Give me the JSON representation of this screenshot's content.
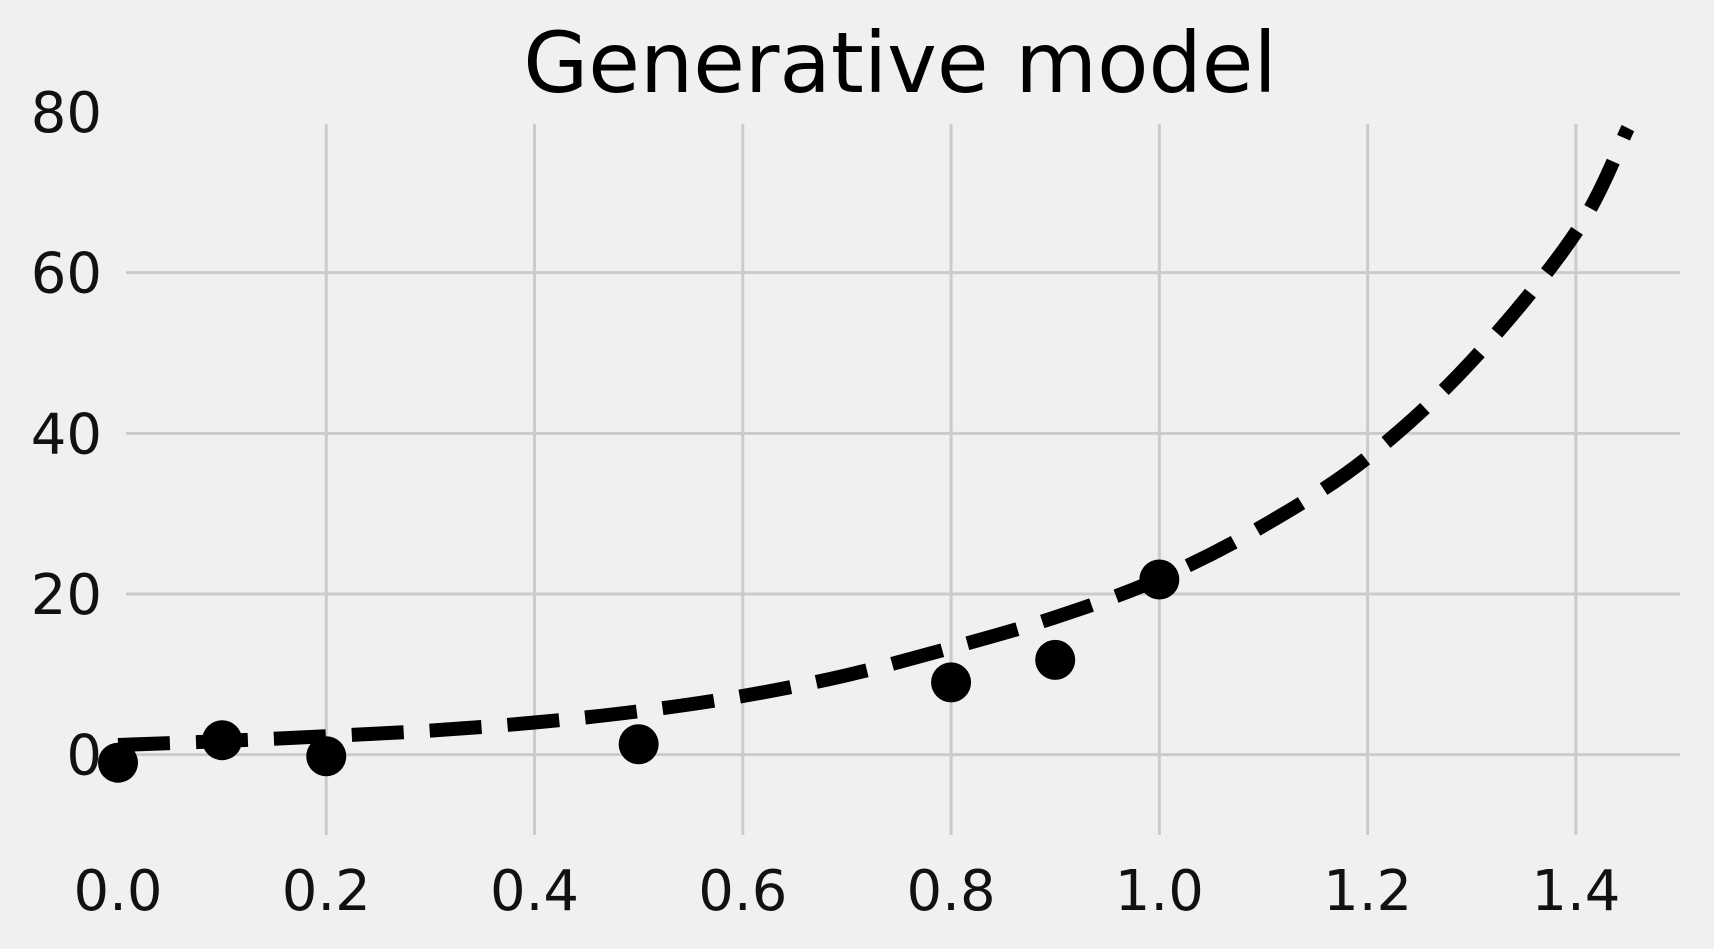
{
  "chart_data": {
    "type": "line",
    "title": "Generative model",
    "xlabel": "",
    "ylabel": "",
    "xlim": [
      0.0,
      1.5
    ],
    "ylim": [
      -10,
      80
    ],
    "xticks": [
      "0.0",
      "0.2",
      "0.4",
      "0.6",
      "0.8",
      "1.0",
      "1.2",
      "1.4"
    ],
    "xtick_values": [
      0.0,
      0.2,
      0.4,
      0.6,
      0.8,
      1.0,
      1.2,
      1.4
    ],
    "yticks": [
      "0",
      "20",
      "40",
      "60",
      "80"
    ],
    "ytick_values": [
      0,
      20,
      40,
      60,
      80
    ],
    "grid": true,
    "colors": {
      "background": "#f0f0f0",
      "grid": "#cbcbcb",
      "series": "#000000"
    },
    "series": [
      {
        "style": "dashed-line",
        "x": [
          0.0,
          0.1,
          0.2,
          0.3,
          0.4,
          0.5,
          0.6,
          0.7,
          0.8,
          0.9,
          1.0,
          1.1,
          1.2,
          1.3,
          1.4,
          1.45
        ],
        "y": [
          1.2,
          1.7,
          2.3,
          3.0,
          4.0,
          5.4,
          7.3,
          9.9,
          13.3,
          17.1,
          21.9,
          28.5,
          37.0,
          49.0,
          65.0,
          78.0
        ]
      },
      {
        "style": "scatter",
        "x": [
          0.0,
          0.1,
          0.2,
          0.5,
          0.8,
          0.9,
          1.0
        ],
        "y": [
          -1.0,
          1.8,
          -0.2,
          1.3,
          9.0,
          11.8,
          21.8
        ]
      }
    ]
  }
}
